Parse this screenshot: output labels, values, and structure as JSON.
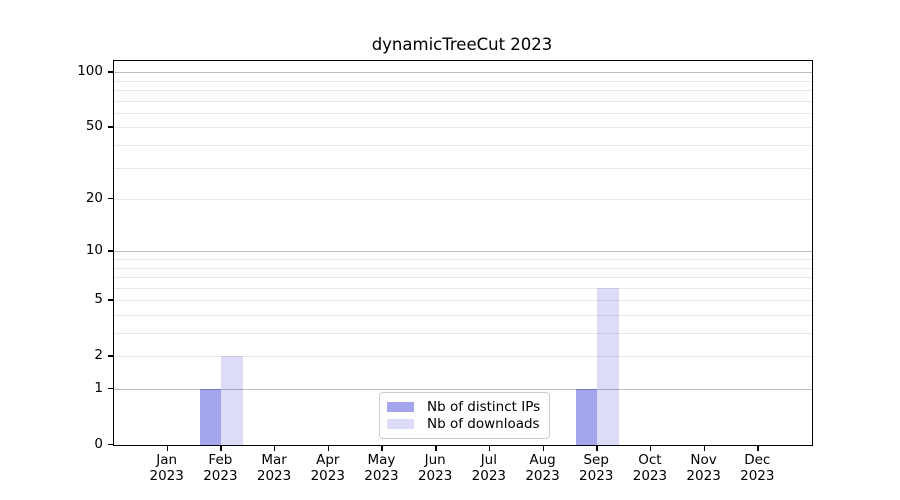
{
  "title": "dynamicTreeCut 2023",
  "chart_data": {
    "type": "bar",
    "title": "dynamicTreeCut 2023",
    "xlabel": "",
    "ylabel": "",
    "categories": [
      "Jan 2023",
      "Feb 2023",
      "Mar 2023",
      "Apr 2023",
      "May 2023",
      "Jun 2023",
      "Jul 2023",
      "Aug 2023",
      "Sep 2023",
      "Oct 2023",
      "Nov 2023",
      "Dec 2023"
    ],
    "series": [
      {
        "name": "Nb of distinct IPs",
        "color": "#a5a5ee",
        "values": [
          0,
          1,
          0,
          0,
          0,
          0,
          0,
          0,
          1,
          0,
          0,
          0
        ]
      },
      {
        "name": "Nb of downloads",
        "color": "#dcdcf8",
        "values": [
          0,
          2,
          0,
          0,
          0,
          0,
          0,
          0,
          6,
          0,
          0,
          0
        ]
      }
    ],
    "yscale": "log1p",
    "ylim": [
      0,
      115
    ],
    "yticks": [
      {
        "value": 0,
        "label": "0"
      },
      {
        "value": 1,
        "label": "1"
      },
      {
        "value": 2,
        "label": "2"
      },
      {
        "value": 5,
        "label": "5"
      },
      {
        "value": 10,
        "label": "10"
      },
      {
        "value": 20,
        "label": "20"
      },
      {
        "value": 50,
        "label": "50"
      },
      {
        "value": 100,
        "label": "100"
      }
    ],
    "major_gridlines": [
      1,
      10,
      100
    ],
    "minor_gridlines": [
      2,
      3,
      4,
      5,
      6,
      7,
      8,
      9,
      20,
      30,
      40,
      50,
      60,
      70,
      80,
      90
    ],
    "grid": true,
    "legend_position": "bottom-center",
    "legend": {
      "labels": [
        "Nb of distinct IPs",
        "Nb of downloads"
      ]
    },
    "colors": {
      "axis": "#000000",
      "major_grid": "#c3c3c3",
      "minor_grid": "#e8e8e8",
      "background": "#ffffff",
      "legend_border": "#cccccc"
    }
  }
}
